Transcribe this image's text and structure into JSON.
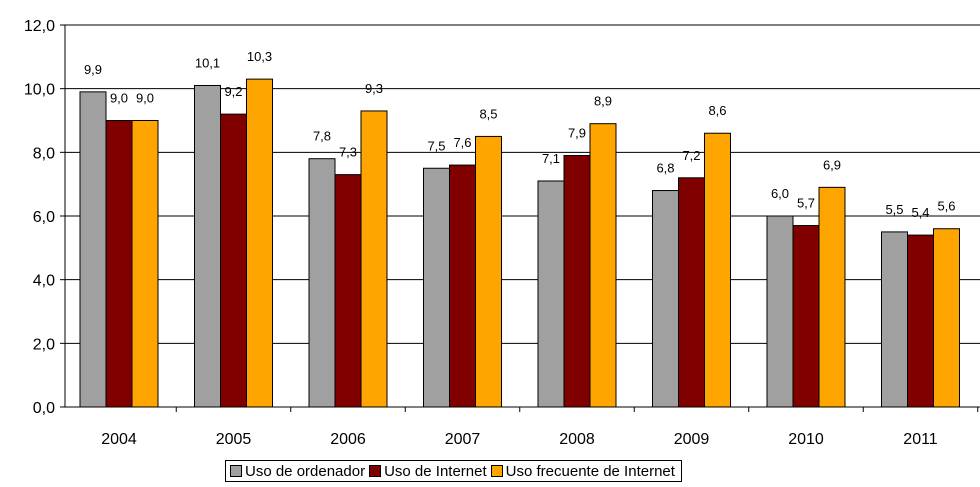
{
  "chart_data": {
    "type": "bar",
    "categories": [
      "2004",
      "2005",
      "2006",
      "2007",
      "2008",
      "2009",
      "2010",
      "2011"
    ],
    "series": [
      {
        "name": "Uso de ordenador",
        "color": "#a0a0a0",
        "values": [
          9.9,
          10.1,
          7.8,
          7.5,
          7.1,
          6.8,
          6.0,
          5.5
        ],
        "labels": [
          "9,9",
          "10,1",
          "7,8",
          "7,5",
          "7,1",
          "6,8",
          "6,0",
          "5,5"
        ]
      },
      {
        "name": "Uso de Internet",
        "color": "#800000",
        "values": [
          9.0,
          9.2,
          7.3,
          7.6,
          7.9,
          7.2,
          5.7,
          5.4
        ],
        "labels": [
          "9,0",
          "9,2",
          "7,3",
          "7,6",
          "7,9",
          "7,2",
          "5,7",
          "5,4"
        ]
      },
      {
        "name": "Uso frecuente de Internet",
        "color": "#ffa500",
        "values": [
          9.0,
          10.3,
          9.3,
          8.5,
          8.9,
          8.6,
          6.9,
          5.6
        ],
        "labels": [
          "9,0",
          "10,3",
          "9,3",
          "8,5",
          "8,9",
          "8,6",
          "6,9",
          "5,6"
        ]
      }
    ],
    "ylim": [
      0,
      12
    ],
    "yticks": [
      0,
      2,
      4,
      6,
      8,
      10,
      12
    ],
    "ytick_labels": [
      "0,0",
      "2,0",
      "4,0",
      "6,0",
      "8,0",
      "10,0",
      "12,0"
    ],
    "grid": true,
    "legend": "bottom",
    "title": "",
    "xlabel": "",
    "ylabel": ""
  }
}
